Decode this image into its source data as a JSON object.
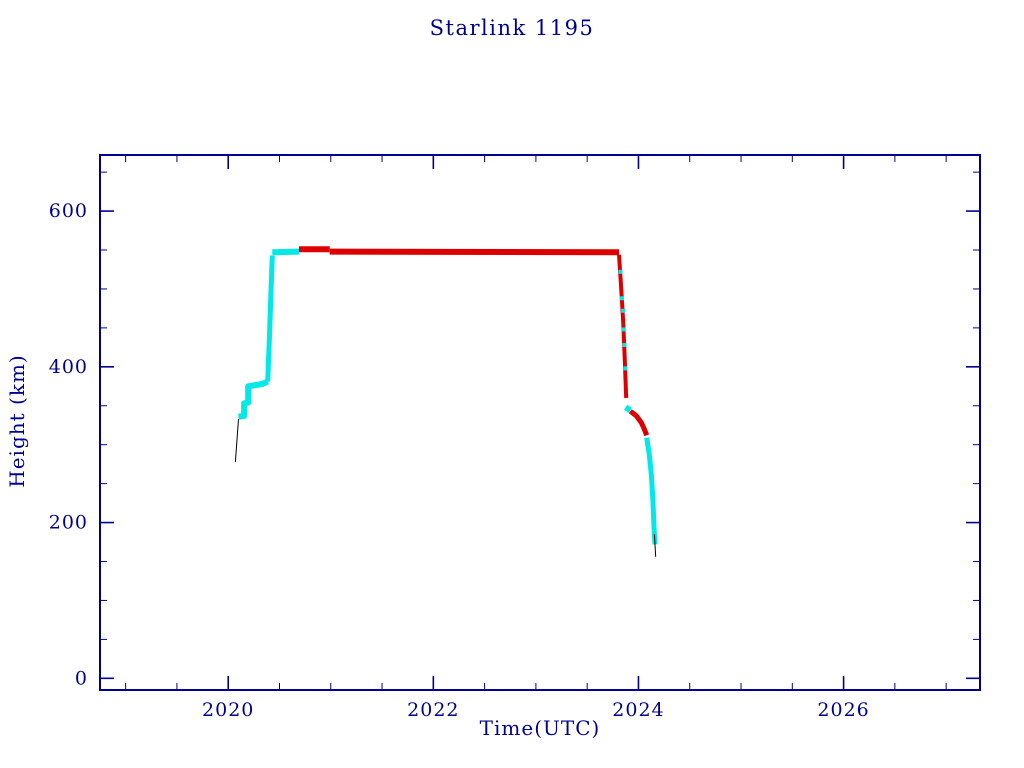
{
  "chart_data": {
    "type": "scatter",
    "title": "Starlink 1195",
    "xlabel": "Time(UTC)",
    "ylabel": "Height (km)",
    "xlim": [
      2018.75,
      2027.33
    ],
    "ylim": [
      -15,
      672
    ],
    "xticks": [
      2020,
      2022,
      2024,
      2026
    ],
    "yticks": [
      0,
      200,
      400,
      600
    ],
    "x_minor_step": 0.5,
    "y_minor_step": 50,
    "grid": false,
    "legend": "none",
    "axis_color": "#000090",
    "marker_colors": {
      "tle_track": "#000000",
      "ascent_station_keep": "#00e8e8",
      "operational": "#dd0000"
    },
    "series": [
      {
        "name": "tle-track-start",
        "color": "#000000",
        "width": 1,
        "points": [
          [
            2020.07,
            278
          ],
          [
            2020.1,
            333
          ]
        ]
      },
      {
        "name": "ascent-steps",
        "color": "#00e8e8",
        "width": 6,
        "points": [
          [
            2020.1,
            336
          ],
          [
            2020.155,
            337
          ],
          [
            2020.155,
            353
          ],
          [
            2020.195,
            354
          ],
          [
            2020.195,
            375
          ],
          [
            2020.33,
            378
          ],
          [
            2020.385,
            381
          ]
        ]
      },
      {
        "name": "ascent-climb",
        "color": "#00e8e8",
        "width": 5,
        "points": [
          [
            2020.385,
            381
          ],
          [
            2020.4,
            430
          ],
          [
            2020.415,
            490
          ],
          [
            2020.43,
            543
          ]
        ]
      },
      {
        "name": "parking-flat",
        "color": "#00e8e8",
        "width": 6,
        "points": [
          [
            2020.43,
            547
          ],
          [
            2020.69,
            548
          ]
        ]
      },
      {
        "name": "operational-flat-high",
        "color": "#dd0000",
        "width": 6,
        "points": [
          [
            2020.69,
            551
          ],
          [
            2020.99,
            551
          ]
        ]
      },
      {
        "name": "operational-flat",
        "color": "#dd0000",
        "width": 6,
        "points": [
          [
            2020.99,
            548
          ],
          [
            2023.81,
            547
          ]
        ]
      },
      {
        "name": "deorbit-drop",
        "color": "#dd0000",
        "width": 4,
        "points": [
          [
            2023.81,
            544
          ],
          [
            2023.83,
            505
          ],
          [
            2023.85,
            460
          ],
          [
            2023.865,
            415
          ],
          [
            2023.88,
            360
          ]
        ]
      },
      {
        "name": "deorbit-drop-speckle",
        "color": "#00e8e8",
        "width": 0,
        "marker": 4,
        "points": [
          [
            2023.825,
            522
          ],
          [
            2023.84,
            488
          ],
          [
            2023.85,
            472
          ],
          [
            2023.857,
            448
          ],
          [
            2023.864,
            428
          ],
          [
            2023.872,
            398
          ]
        ]
      },
      {
        "name": "low-flat",
        "color": "#00e8e8",
        "width": 6,
        "points": [
          [
            2023.875,
            348
          ],
          [
            2023.92,
            344
          ]
        ]
      },
      {
        "name": "low-decline",
        "color": "#dd0000",
        "width": 5,
        "points": [
          [
            2023.92,
            343
          ],
          [
            2023.98,
            337
          ],
          [
            2024.03,
            328
          ],
          [
            2024.06,
            319
          ],
          [
            2024.08,
            312
          ]
        ]
      },
      {
        "name": "final-decay",
        "color": "#00e8e8",
        "width": 5,
        "points": [
          [
            2024.08,
            309
          ],
          [
            2024.105,
            288
          ],
          [
            2024.125,
            262
          ],
          [
            2024.14,
            232
          ],
          [
            2024.15,
            200
          ],
          [
            2024.16,
            172
          ]
        ]
      },
      {
        "name": "tle-track-end",
        "color": "#000000",
        "width": 1,
        "points": [
          [
            2024.155,
            185
          ],
          [
            2024.168,
            156
          ]
        ]
      }
    ]
  }
}
